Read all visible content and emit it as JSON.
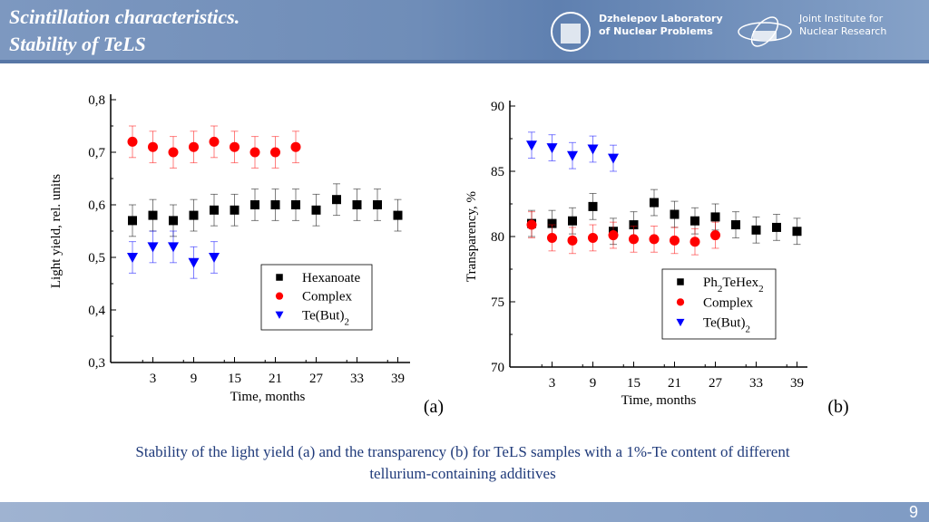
{
  "header": {
    "title_line1": "Scintillation characteristics.",
    "title_line2": "Stability of TeLS",
    "logo1_line1": "Dzhelepov Laboratory",
    "logo1_line2": "of Nuclear Problems",
    "logo2_line1": "Joint Institute for",
    "logo2_line2": "Nuclear Research"
  },
  "caption_line1": "Stability of the light yield (a) and the transparency (b) for TeLS samples with a 1%-Te content of different",
  "caption_line2": "tellurium-containing additives",
  "page_number": "9",
  "chart_data": [
    {
      "type": "scatter",
      "panel_label": "(a)",
      "xlabel": "Time, months",
      "ylabel": "Light yield, rel. units",
      "xlim": [
        -3,
        41
      ],
      "ylim": [
        0.3,
        0.8
      ],
      "xticks": [
        "3",
        "9",
        "15",
        "21",
        "27",
        "33",
        "39"
      ],
      "yticks": [
        "0,3",
        "0,4",
        "0,5",
        "0,6",
        "0,7",
        "0,8"
      ],
      "legend": "bottom-center",
      "series": [
        {
          "name": "Hexanoate",
          "marker": "square",
          "color": "#000000",
          "x": [
            0,
            3,
            6,
            9,
            12,
            15,
            18,
            21,
            24,
            27,
            30,
            33,
            36,
            39
          ],
          "y": [
            0.57,
            0.58,
            0.57,
            0.58,
            0.59,
            0.59,
            0.6,
            0.6,
            0.6,
            0.59,
            0.61,
            0.6,
            0.6,
            0.58
          ],
          "err": 0.03
        },
        {
          "name": "Complex",
          "marker": "circle",
          "color": "#ff0000",
          "x": [
            0,
            3,
            6,
            9,
            12,
            15,
            18,
            21,
            24
          ],
          "y": [
            0.72,
            0.71,
            0.7,
            0.71,
            0.72,
            0.71,
            0.7,
            0.7,
            0.71
          ],
          "err": 0.03
        },
        {
          "name": "Te(But)2",
          "marker": "triangle-down",
          "color": "#0000ff",
          "x": [
            0,
            3,
            6,
            9,
            12
          ],
          "y": [
            0.5,
            0.52,
            0.52,
            0.49,
            0.5
          ],
          "err": 0.03
        }
      ]
    },
    {
      "type": "scatter",
      "panel_label": "(b)",
      "xlabel": "Time, months",
      "ylabel": "Transparency, %",
      "xlim": [
        -3,
        41
      ],
      "ylim": [
        70,
        90
      ],
      "xticks": [
        "3",
        "9",
        "15",
        "21",
        "27",
        "33",
        "39"
      ],
      "yticks": [
        "70",
        "75",
        "80",
        "85",
        "90"
      ],
      "legend": "bottom-right",
      "series": [
        {
          "name": "Ph2TeHex2",
          "marker": "square",
          "color": "#000000",
          "x": [
            0,
            3,
            6,
            9,
            12,
            15,
            18,
            21,
            24,
            27,
            30,
            33,
            36,
            39
          ],
          "y": [
            81.0,
            81.0,
            81.2,
            82.3,
            80.4,
            80.9,
            82.6,
            81.7,
            81.2,
            81.5,
            80.9,
            80.5,
            80.7,
            80.4
          ],
          "err": 1.0
        },
        {
          "name": "Complex",
          "marker": "circle",
          "color": "#ff0000",
          "x": [
            0,
            3,
            6,
            9,
            12,
            15,
            18,
            21,
            24,
            27
          ],
          "y": [
            80.9,
            79.9,
            79.7,
            79.9,
            80.1,
            79.8,
            79.8,
            79.7,
            79.6,
            80.1
          ],
          "err": 1.0
        },
        {
          "name": "Te(But)2",
          "marker": "triangle-down",
          "color": "#0000ff",
          "x": [
            0,
            3,
            6,
            9,
            12
          ],
          "y": [
            87.0,
            86.8,
            86.2,
            86.7,
            86.0
          ],
          "err": 1.0
        }
      ]
    }
  ]
}
